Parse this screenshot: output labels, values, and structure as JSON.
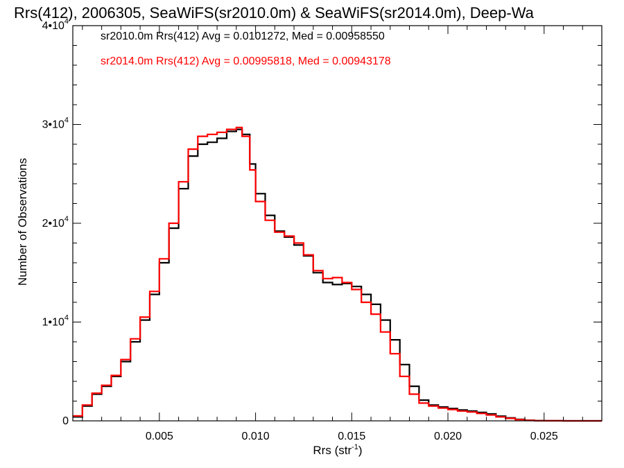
{
  "chart_data": {
    "type": "line",
    "title": "Rrs(412), 2006305, SeaWiFS(sr2010.0m) & SeaWiFS(sr2014.0m), Deep-Wa",
    "xlabel": "Rrs (str",
    "xlabel_sup": "-1",
    "xlabel_close": ")",
    "ylabel": "Number of Observations",
    "xlim": [
      0.0005,
      0.028
    ],
    "ylim": [
      0,
      40000
    ],
    "x_ticks": [
      {
        "value": 0.005,
        "label": "0.005"
      },
      {
        "value": 0.01,
        "label": "0.010"
      },
      {
        "value": 0.015,
        "label": "0.015"
      },
      {
        "value": 0.02,
        "label": "0.020"
      },
      {
        "value": 0.025,
        "label": "0.025"
      }
    ],
    "y_ticks": [
      {
        "value": 0,
        "label": "0",
        "sup": ""
      },
      {
        "value": 10000,
        "label": "1•10",
        "sup": "4"
      },
      {
        "value": 20000,
        "label": "2•10",
        "sup": "4"
      },
      {
        "value": 30000,
        "label": "3•10",
        "sup": "4"
      },
      {
        "value": 40000,
        "label": "4•10",
        "sup": "4"
      }
    ],
    "grid": false,
    "series": [
      {
        "name": "sr2010.0m",
        "color": "#000000",
        "stat_text": "sr2010.0m Rrs(412) Avg = 0.0101272, Med = 0.00958550",
        "x": [
          0.0005,
          0.001,
          0.0015,
          0.002,
          0.0025,
          0.003,
          0.0035,
          0.004,
          0.0045,
          0.005,
          0.0055,
          0.006,
          0.0065,
          0.007,
          0.0075,
          0.008,
          0.0085,
          0.009,
          0.0093,
          0.0097,
          0.01,
          0.0105,
          0.011,
          0.0115,
          0.012,
          0.0125,
          0.013,
          0.0135,
          0.014,
          0.0145,
          0.015,
          0.0155,
          0.016,
          0.0165,
          0.017,
          0.0175,
          0.018,
          0.0185,
          0.019,
          0.0195,
          0.02,
          0.0205,
          0.021,
          0.0215,
          0.022,
          0.0225,
          0.023,
          0.0235,
          0.024,
          0.0245,
          0.025,
          0.026,
          0.027,
          0.028
        ],
        "y": [
          400,
          1500,
          2700,
          3500,
          4500,
          6000,
          8000,
          10200,
          12800,
          16000,
          19500,
          23500,
          26800,
          28000,
          28200,
          28600,
          29300,
          29500,
          29000,
          26000,
          23000,
          20800,
          19200,
          18600,
          17800,
          16700,
          15000,
          14000,
          13800,
          13900,
          13600,
          12800,
          11800,
          10200,
          8200,
          5700,
          3500,
          2100,
          1600,
          1400,
          1250,
          1100,
          1000,
          850,
          700,
          480,
          300,
          150,
          60,
          20,
          5,
          0,
          0,
          0
        ]
      },
      {
        "name": "sr2014.0m",
        "color": "#ff0000",
        "stat_text": "sr2014.0m Rrs(412) Avg = 0.00995818, Med = 0.00943178",
        "x": [
          0.0005,
          0.001,
          0.0015,
          0.002,
          0.0025,
          0.003,
          0.0035,
          0.004,
          0.0045,
          0.005,
          0.0055,
          0.006,
          0.0065,
          0.007,
          0.0075,
          0.008,
          0.0085,
          0.009,
          0.0093,
          0.0097,
          0.01,
          0.0105,
          0.011,
          0.0115,
          0.012,
          0.0125,
          0.013,
          0.0135,
          0.014,
          0.0145,
          0.015,
          0.0155,
          0.016,
          0.0165,
          0.017,
          0.0175,
          0.018,
          0.0185,
          0.019,
          0.0195,
          0.02,
          0.0205,
          0.021,
          0.0215,
          0.022,
          0.0225,
          0.023,
          0.0235,
          0.024,
          0.0245,
          0.025,
          0.026,
          0.027,
          0.028
        ],
        "y": [
          500,
          1600,
          2800,
          3600,
          4600,
          6200,
          8300,
          10500,
          13100,
          16400,
          20000,
          24200,
          27500,
          28800,
          29000,
          29200,
          29500,
          29700,
          28800,
          25400,
          22200,
          20300,
          19100,
          18700,
          18000,
          16800,
          15200,
          14400,
          14500,
          14000,
          13300,
          12000,
          10800,
          9000,
          6800,
          4500,
          2700,
          1800,
          1500,
          1300,
          1150,
          1000,
          900,
          750,
          600,
          400,
          250,
          120,
          50,
          15,
          5,
          0,
          0,
          0
        ]
      }
    ]
  }
}
